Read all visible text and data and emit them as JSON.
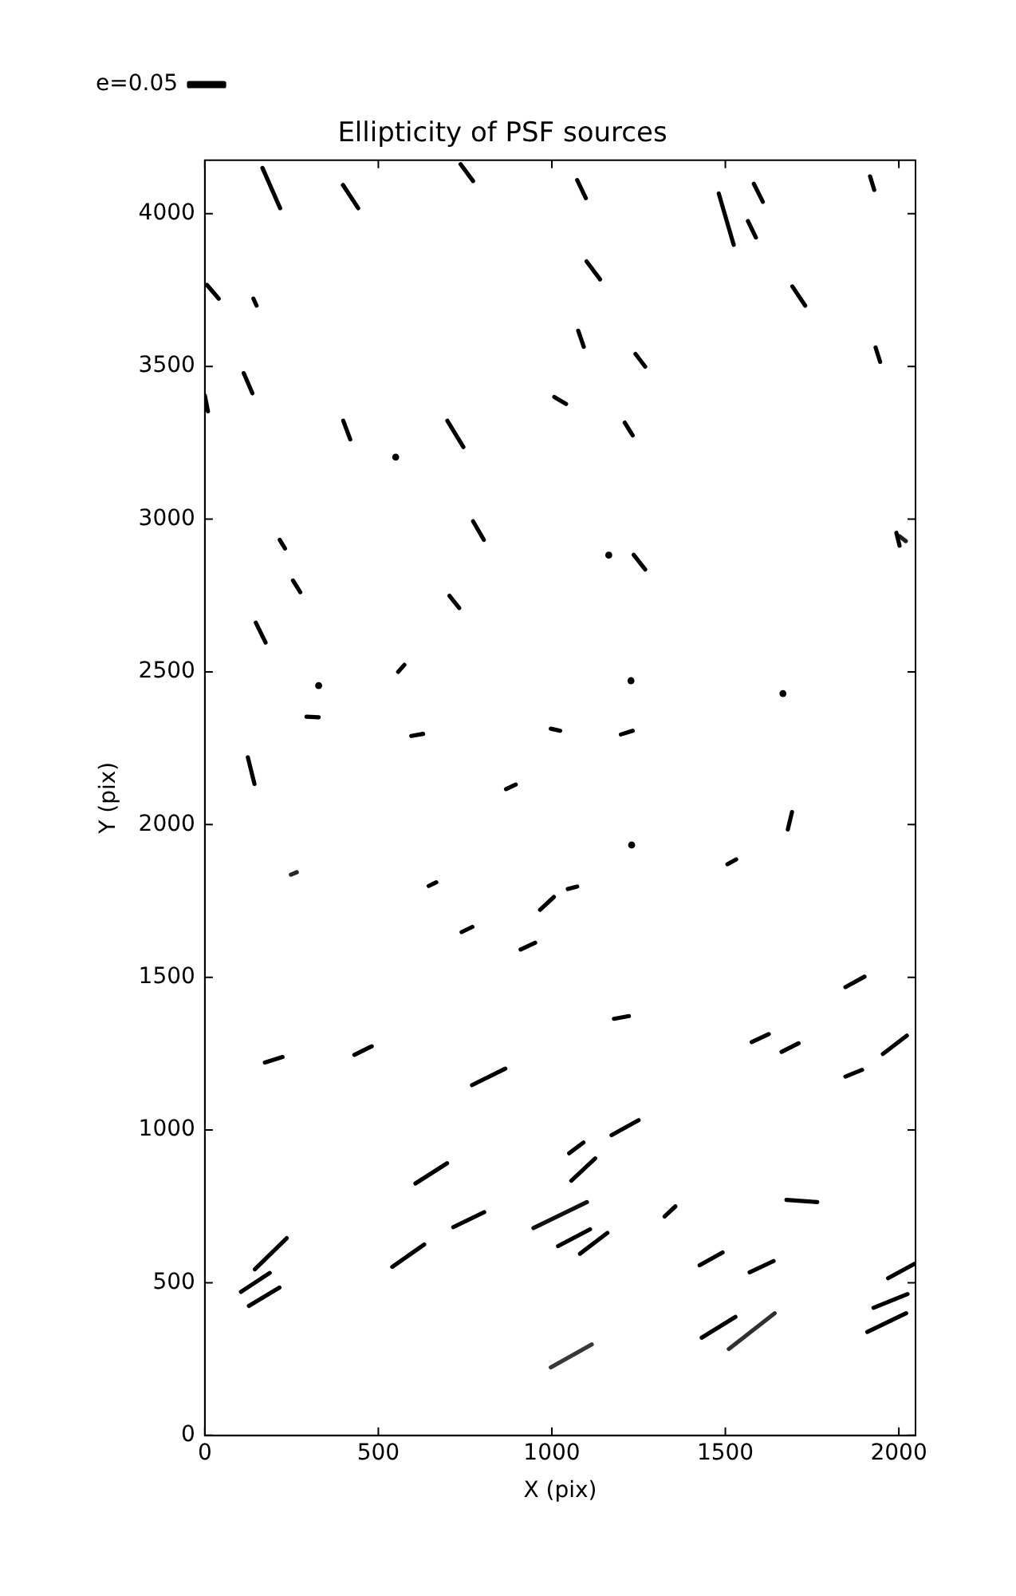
{
  "chart_data": {
    "type": "line",
    "title": "Ellipticity of PSF sources",
    "xlabel": "X (pix)",
    "ylabel": "Y (pix)",
    "xlim": [
      0,
      2048
    ],
    "ylim": [
      0,
      4175
    ],
    "xticks": [
      0,
      500,
      1000,
      1500,
      2000
    ],
    "yticks": [
      0,
      500,
      1000,
      1500,
      2000,
      2500,
      3000,
      3500,
      4000
    ],
    "grid": false,
    "legend": "top left",
    "marker": "none",
    "series": [
      {
        "name": "e=0.05",
        "color": "#000000",
        "x": [
          166,
          217
        ],
        "values": [
          4150,
          4018
        ]
      },
      {
        "color": "#000000",
        "x": [
          398,
          442
        ],
        "values": [
          4094,
          4018
        ]
      },
      {
        "color": "#000000",
        "x": [
          737,
          773
        ],
        "values": [
          4162,
          4107
        ]
      },
      {
        "color": "#000000",
        "x": [
          1073,
          1098
        ],
        "values": [
          4110,
          4051
        ]
      },
      {
        "color": "#000000",
        "x": [
          1481,
          1524
        ],
        "values": [
          4066,
          3898
        ]
      },
      {
        "color": "#000000",
        "x": [
          1582,
          1608
        ],
        "values": [
          4098,
          4039
        ]
      },
      {
        "color": "#000000",
        "x": [
          1565,
          1588
        ],
        "values": [
          3976,
          3922
        ]
      },
      {
        "color": "#000000",
        "x": [
          1917,
          1929
        ],
        "values": [
          4122,
          4078
        ]
      },
      {
        "color": "#000000",
        "x": [
          1100,
          1139
        ],
        "values": [
          3844,
          3785
        ]
      },
      {
        "color": "#000000",
        "x": [
          6,
          40
        ],
        "values": [
          3767,
          3722
        ]
      },
      {
        "color": "#000000",
        "x": [
          140,
          149
        ],
        "values": [
          3722,
          3699
        ]
      },
      {
        "color": "#000000",
        "x": [
          1693,
          1730
        ],
        "values": [
          3762,
          3699
        ]
      },
      {
        "color": "#000000",
        "x": [
          1076,
          1092
        ],
        "values": [
          3617,
          3564
        ]
      },
      {
        "color": "#000000",
        "x": [
          1241,
          1269
        ],
        "values": [
          3541,
          3499
        ]
      },
      {
        "color": "#000000",
        "x": [
          1933,
          1946
        ],
        "values": [
          3562,
          3515
        ]
      },
      {
        "color": "#000000",
        "x": [
          112,
          137
        ],
        "values": [
          3478,
          3412
        ]
      },
      {
        "color": "#000000",
        "x": [
          0,
          9
        ],
        "values": [
          3405,
          3353
        ]
      },
      {
        "color": "#000000",
        "x": [
          1007,
          1041
        ],
        "values": [
          3400,
          3377
        ]
      },
      {
        "color": "#000000",
        "x": [
          399,
          419
        ],
        "values": [
          3322,
          3261
        ]
      },
      {
        "color": "#000000",
        "x": [
          699,
          745
        ],
        "values": [
          3322,
          3236
        ]
      },
      {
        "color": "#000000",
        "x": [
          1210,
          1233
        ],
        "values": [
          3316,
          3274
        ]
      },
      {
        "type": "scatter",
        "marker": "circle",
        "color": "#000000",
        "x": [
          550
        ],
        "values": [
          3203
        ]
      },
      {
        "color": "#000000",
        "x": [
          1993,
          2002
        ],
        "values": [
          2955,
          2913
        ]
      },
      {
        "color": "#202020",
        "x": [
          2002,
          2020
        ],
        "values": [
          2944,
          2928
        ]
      },
      {
        "color": "#000000",
        "x": [
          773,
          804
        ],
        "values": [
          2993,
          2932
        ]
      },
      {
        "color": "#000000",
        "x": [
          216,
          231
        ],
        "values": [
          2932,
          2904
        ]
      },
      {
        "type": "scatter",
        "marker": "circle",
        "color": "#000000",
        "x": [
          1164
        ],
        "values": [
          2882
        ]
      },
      {
        "color": "#000000",
        "x": [
          1236,
          1269
        ],
        "values": [
          2883,
          2835
        ]
      },
      {
        "color": "#000000",
        "x": [
          254,
          275
        ],
        "values": [
          2799,
          2761
        ]
      },
      {
        "color": "#000000",
        "x": [
          705,
          733
        ],
        "values": [
          2749,
          2709
        ]
      },
      {
        "color": "#000000",
        "x": [
          147,
          175
        ],
        "values": [
          2661,
          2596
        ]
      },
      {
        "color": "#000000",
        "x": [
          557,
          575
        ],
        "values": [
          2500,
          2523
        ]
      },
      {
        "type": "scatter",
        "marker": "circle",
        "color": "#000000",
        "x": [
          328
        ],
        "values": [
          2455
        ]
      },
      {
        "type": "scatter",
        "marker": "circle",
        "color": "#000000",
        "x": [
          1228
        ],
        "values": [
          2471
        ]
      },
      {
        "type": "scatter",
        "marker": "circle",
        "color": "#000000",
        "x": [
          1666
        ],
        "values": [
          2429
        ]
      },
      {
        "color": "#000000",
        "x": [
          293,
          328
        ],
        "values": [
          2353,
          2351
        ]
      },
      {
        "color": "#000000",
        "x": [
          595,
          629
        ],
        "values": [
          2290,
          2297
        ]
      },
      {
        "color": "#000000",
        "x": [
          997,
          1024
        ],
        "values": [
          2314,
          2307
        ]
      },
      {
        "color": "#000000",
        "x": [
          1199,
          1233
        ],
        "values": [
          2295,
          2307
        ]
      },
      {
        "color": "#000000",
        "x": [
          124,
          143
        ],
        "values": [
          2220,
          2133
        ]
      },
      {
        "color": "#000000",
        "x": [
          868,
          896
        ],
        "values": [
          2116,
          2131
        ]
      },
      {
        "color": "#000000",
        "x": [
          1680,
          1692
        ],
        "values": [
          1984,
          2041
        ]
      },
      {
        "type": "scatter",
        "marker": "circle",
        "color": "#000000",
        "x": [
          1230
        ],
        "values": [
          1933
        ]
      },
      {
        "color": "#282828",
        "x": [
          248,
          265
        ],
        "values": [
          1836,
          1844
        ]
      },
      {
        "color": "#000000",
        "x": [
          645,
          667
        ],
        "values": [
          1799,
          1811
        ]
      },
      {
        "color": "#000000",
        "x": [
          1506,
          1531
        ],
        "values": [
          1870,
          1886
        ]
      },
      {
        "color": "#000000",
        "x": [
          1046,
          1073
        ],
        "values": [
          1789,
          1797
        ]
      },
      {
        "color": "#000000",
        "x": [
          966,
          1006
        ],
        "values": [
          1721,
          1763
        ]
      },
      {
        "color": "#000000",
        "x": [
          740,
          771
        ],
        "values": [
          1648,
          1665
        ]
      },
      {
        "color": "#000000",
        "x": [
          910,
          952
        ],
        "values": [
          1591,
          1613
        ]
      },
      {
        "color": "#000000",
        "x": [
          1846,
          1901
        ],
        "values": [
          1468,
          1502
        ]
      },
      {
        "color": "#000000",
        "x": [
          1179,
          1222
        ],
        "values": [
          1364,
          1373
        ]
      },
      {
        "color": "#000000",
        "x": [
          1576,
          1625
        ],
        "values": [
          1288,
          1314
        ]
      },
      {
        "color": "#000000",
        "x": [
          1662,
          1711
        ],
        "values": [
          1256,
          1284
        ]
      },
      {
        "color": "#000000",
        "x": [
          1954,
          2023
        ],
        "values": [
          1249,
          1309
        ]
      },
      {
        "color": "#000000",
        "x": [
          173,
          224
        ],
        "values": [
          1221,
          1239
        ]
      },
      {
        "color": "#000000",
        "x": [
          431,
          481
        ],
        "values": [
          1246,
          1274
        ]
      },
      {
        "color": "#000000",
        "x": [
          770,
          866
        ],
        "values": [
          1147,
          1201
        ]
      },
      {
        "color": "#000000",
        "x": [
          1846,
          1894
        ],
        "values": [
          1175,
          1197
        ]
      },
      {
        "color": "#000000",
        "x": [
          1172,
          1250
        ],
        "values": [
          983,
          1032
        ]
      },
      {
        "color": "#000000",
        "x": [
          1050,
          1091
        ],
        "values": [
          924,
          959
        ]
      },
      {
        "color": "#000000",
        "x": [
          1056,
          1125
        ],
        "values": [
          834,
          907
        ]
      },
      {
        "color": "#000000",
        "x": [
          607,
          698
        ],
        "values": [
          825,
          891
        ]
      },
      {
        "color": "#000000",
        "x": [
          1676,
          1765
        ],
        "values": [
          771,
          764
        ]
      },
      {
        "color": "#000000",
        "x": [
          1325,
          1356
        ],
        "values": [
          717,
          750
        ]
      },
      {
        "color": "#101010",
        "x": [
          947,
          1101
        ],
        "values": [
          679,
          764
        ]
      },
      {
        "color": "#000000",
        "x": [
          716,
          805
        ],
        "values": [
          682,
          731
        ]
      },
      {
        "color": "#000000",
        "x": [
          1018,
          1110
        ],
        "values": [
          620,
          675
        ]
      },
      {
        "color": "#000000",
        "x": [
          1081,
          1160
        ],
        "values": [
          595,
          663
        ]
      },
      {
        "color": "#000000",
        "x": [
          144,
          236
        ],
        "values": [
          544,
          646
        ]
      },
      {
        "color": "#000000",
        "x": [
          540,
          632
        ],
        "values": [
          552,
          625
        ]
      },
      {
        "color": "#000000",
        "x": [
          1426,
          1492
        ],
        "values": [
          557,
          599
        ]
      },
      {
        "color": "#000000",
        "x": [
          1570,
          1639
        ],
        "values": [
          534,
          571
        ]
      },
      {
        "color": "#000000",
        "x": [
          1969,
          2045
        ],
        "values": [
          515,
          562
        ]
      },
      {
        "color": "#000000",
        "x": [
          104,
          187
        ],
        "values": [
          470,
          532
        ]
      },
      {
        "color": "#000000",
        "x": [
          127,
          215
        ],
        "values": [
          424,
          484
        ]
      },
      {
        "color": "#000000",
        "x": [
          1927,
          2025
        ],
        "values": [
          418,
          463
        ]
      },
      {
        "color": "#000000",
        "x": [
          1909,
          2021
        ],
        "values": [
          339,
          400
        ]
      },
      {
        "color": "#000000",
        "x": [
          1432,
          1529
        ],
        "values": [
          320,
          388
        ]
      },
      {
        "color": "#303030",
        "x": [
          1510,
          1642
        ],
        "values": [
          283,
          400
        ]
      },
      {
        "color": "#383838",
        "x": [
          997,
          1115
        ],
        "values": [
          223,
          298
        ]
      }
    ]
  }
}
